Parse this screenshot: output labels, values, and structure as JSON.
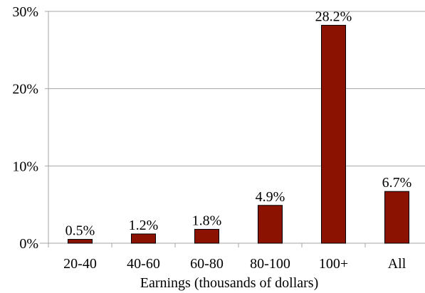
{
  "chart_data": {
    "type": "bar",
    "title": "",
    "xlabel": "Earnings (thousands of dollars)",
    "ylabel": "",
    "categories": [
      "20-40",
      "40-60",
      "60-80",
      "80-100",
      "100+",
      "All"
    ],
    "values": [
      0.5,
      1.2,
      1.8,
      4.9,
      28.2,
      6.7
    ],
    "data_labels": [
      "0.5%",
      "1.2%",
      "1.8%",
      "4.9%",
      "28.2%",
      "6.7%"
    ],
    "ylim": [
      0,
      30
    ],
    "yticks": [
      0,
      10,
      20,
      30
    ],
    "ytick_labels": [
      "0%",
      "10%",
      "20%",
      "30%"
    ],
    "grid": true,
    "legend": "none",
    "bar_color": "#8B1200",
    "bar_edge_color": "#000000",
    "grid_color": "#a6a6a6"
  }
}
